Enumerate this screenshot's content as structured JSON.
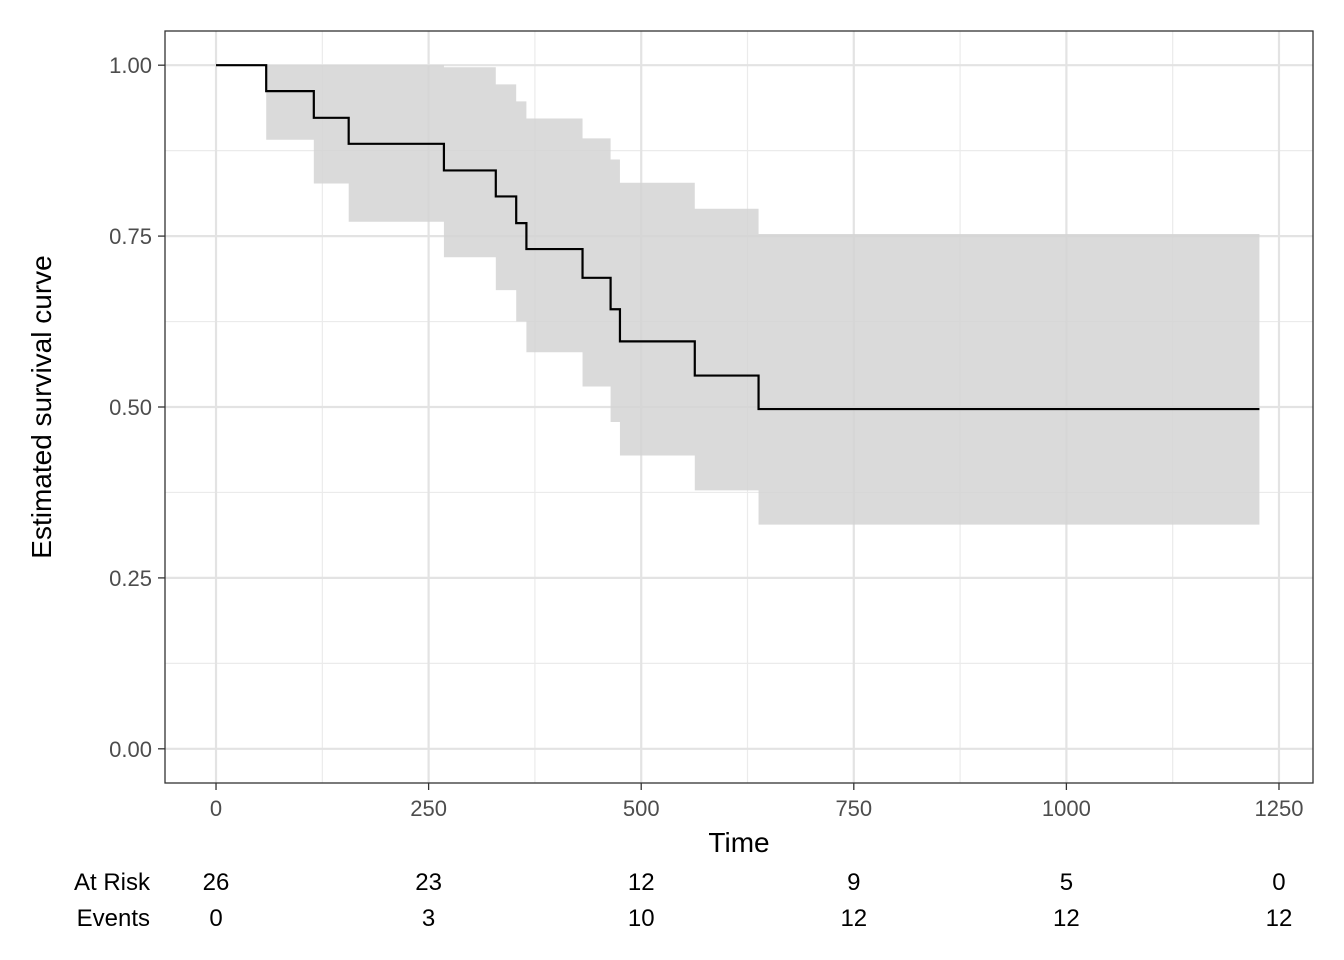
{
  "chart_data": {
    "type": "line",
    "subtype": "kaplan-meier step curve with confidence band",
    "xlabel": "Time",
    "ylabel": "Estimated survival curve",
    "xlim": [
      -60,
      1290
    ],
    "ylim": [
      -0.05,
      1.05
    ],
    "x_ticks": [
      0,
      250,
      500,
      750,
      1000,
      1250
    ],
    "x_tick_labels": [
      "0",
      "250",
      "500",
      "750",
      "1000",
      "1250"
    ],
    "y_ticks": [
      0,
      0.25,
      0.5,
      0.75,
      1.0
    ],
    "y_tick_labels": [
      "0.00",
      "0.25",
      "0.50",
      "0.75",
      "1.00"
    ],
    "grid": true,
    "line_color": "#000000",
    "band_color": "#d3d3d3",
    "x": [
      0,
      59,
      115,
      156,
      268,
      329,
      353,
      365,
      431,
      464,
      475,
      563,
      638,
      1227
    ],
    "y": [
      1.0,
      0.962,
      0.923,
      0.885,
      0.846,
      0.808,
      0.769,
      0.731,
      0.689,
      0.643,
      0.596,
      0.546,
      0.497,
      0.497
    ],
    "lower": [
      1.0,
      0.891,
      0.827,
      0.771,
      0.719,
      0.671,
      0.625,
      0.58,
      0.53,
      0.478,
      0.429,
      0.378,
      0.328,
      0.328
    ],
    "upper": [
      1.0,
      1.0,
      1.0,
      1.0,
      0.997,
      0.972,
      0.947,
      0.922,
      0.893,
      0.862,
      0.828,
      0.79,
      0.753,
      0.753
    ]
  },
  "risk_table": {
    "times": [
      0,
      250,
      500,
      750,
      1000,
      1250
    ],
    "rows": [
      {
        "label": "At Risk",
        "values": [
          "26",
          "23",
          "12",
          "9",
          "5",
          "0"
        ]
      },
      {
        "label": "Events",
        "values": [
          "0",
          "3",
          "10",
          "12",
          "12",
          "12"
        ]
      }
    ]
  }
}
